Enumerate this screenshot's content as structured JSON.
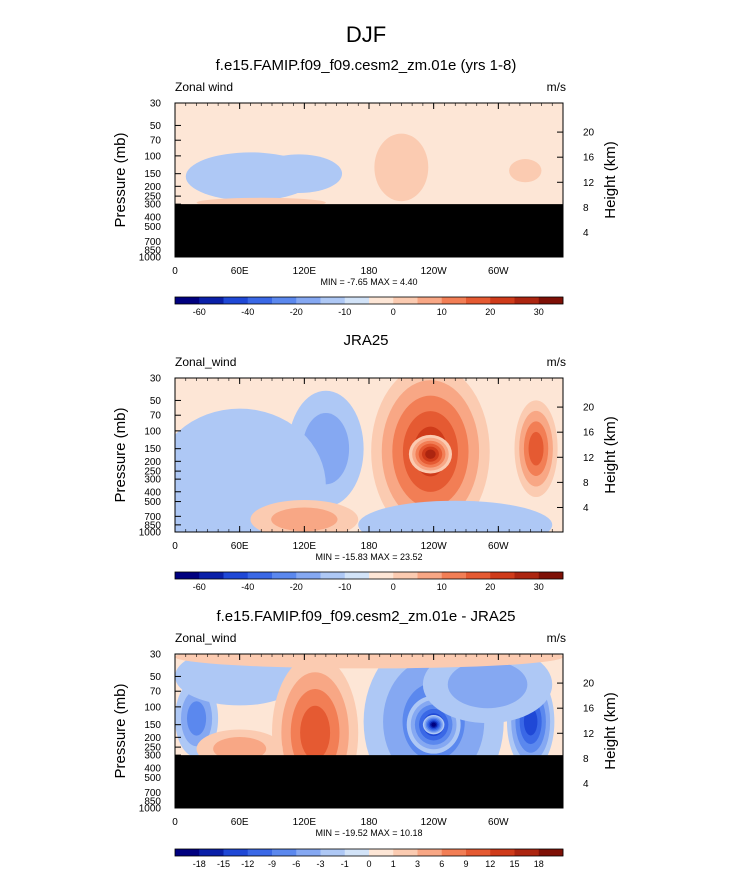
{
  "figure": {
    "title": "DJF"
  },
  "colors": {
    "blues": [
      "#00007f",
      "#0a20a8",
      "#1f48d6",
      "#3a68e6",
      "#5b88ee",
      "#85a8f2",
      "#aec8f5",
      "#d2e3f8"
    ],
    "reds": [
      "#fde6d6",
      "#fbcbb1",
      "#f8a785",
      "#f27e55",
      "#e55a32",
      "#cf3b1a",
      "#ac2510",
      "#7e1006"
    ],
    "mask": "#000000"
  },
  "chart_data": [
    {
      "type": "heatmap",
      "title": "f.e15.FAMIP.f09_f09.cesm2_zm.01e (yrs 1-8)",
      "left_label": "Zonal wind",
      "right_label": "m/s",
      "xlabel": "",
      "ylabel": "Pressure (mb)",
      "ylabel_right": "Height (km)",
      "x_ticks": [
        "0",
        "60E",
        "120E",
        "180",
        "120W",
        "60W"
      ],
      "y_ticks": [
        "30",
        "50",
        "70",
        "100",
        "150",
        "200",
        "250",
        "300",
        "400",
        "500",
        "700",
        "850",
        "1000"
      ],
      "height_ticks": [
        "20",
        "16",
        "12",
        "8",
        "4"
      ],
      "x_range": [
        0,
        360
      ],
      "y_range": [
        1000,
        30
      ],
      "masked_below_mb": 300,
      "features": [
        {
          "kind": "negative",
          "level": 1,
          "lon": 70,
          "p": 160,
          "dlon": 60,
          "dp": 0.25
        },
        {
          "kind": "negative",
          "level": 1,
          "lon": 115,
          "p": 150,
          "dlon": 40,
          "dp": 0.2
        },
        {
          "kind": "positive",
          "level": 1,
          "lon": 210,
          "p": 130,
          "dlon": 25,
          "dp": 0.35
        },
        {
          "kind": "positive",
          "level": 1,
          "lon": 325,
          "p": 140,
          "dlon": 15,
          "dp": 0.12
        },
        {
          "kind": "positive",
          "level": 1,
          "lon": 80,
          "p": 290,
          "dlon": 60,
          "dp": 0.05
        }
      ],
      "min_label": "MIN =  -7.65  MAX =  4.40",
      "colorbar_ticks": [
        "-60",
        "-40",
        "-20",
        "-10",
        "0",
        "10",
        "20",
        "30"
      ]
    },
    {
      "type": "heatmap",
      "title": "JRA25",
      "left_label": "Zonal_wind",
      "right_label": "m/s",
      "xlabel": "",
      "ylabel": "Pressure (mb)",
      "ylabel_right": "Height (km)",
      "x_ticks": [
        "0",
        "60E",
        "120E",
        "180",
        "120W",
        "60W"
      ],
      "y_ticks": [
        "30",
        "50",
        "70",
        "100",
        "150",
        "200",
        "250",
        "300",
        "400",
        "500",
        "700",
        "850",
        "1000"
      ],
      "height_ticks": [
        "20",
        "16",
        "12",
        "8",
        "4"
      ],
      "x_range": [
        0,
        360
      ],
      "y_range": [
        1000,
        30
      ],
      "masked_below_mb": null,
      "features": [
        {
          "kind": "positive",
          "level": 5,
          "lon": 237,
          "p": 160,
          "dlon": 55,
          "dp": 0.9
        },
        {
          "kind": "positive",
          "level": 6,
          "lon": 237,
          "p": 170,
          "dlon": 20,
          "dp": 0.2
        },
        {
          "kind": "positive",
          "level": 4,
          "lon": 335,
          "p": 150,
          "dlon": 20,
          "dp": 0.5
        },
        {
          "kind": "negative",
          "level": 2,
          "lon": 140,
          "p": 150,
          "dlon": 35,
          "dp": 0.6
        },
        {
          "kind": "negative",
          "level": 3,
          "lon": 120,
          "p": 150,
          "dlon": 8,
          "dp": 0.1
        },
        {
          "kind": "negative",
          "level": 1,
          "lon": 60,
          "p": 350,
          "dlon": 80,
          "dp": 0.8
        },
        {
          "kind": "negative",
          "level": 1,
          "lon": 260,
          "p": 850,
          "dlon": 90,
          "dp": 0.25
        },
        {
          "kind": "positive",
          "level": 2,
          "lon": 120,
          "p": 750,
          "dlon": 50,
          "dp": 0.2
        }
      ],
      "min_label": "MIN = -15.83  MAX =  23.52",
      "colorbar_ticks": [
        "-60",
        "-40",
        "-20",
        "-10",
        "0",
        "10",
        "20",
        "30"
      ]
    },
    {
      "type": "heatmap",
      "title": "f.e15.FAMIP.f09_f09.cesm2_zm.01e - JRA25",
      "left_label": "Zonal_wind",
      "right_label": "m/s",
      "xlabel": "",
      "ylabel": "Pressure (mb)",
      "ylabel_right": "Height (km)",
      "x_ticks": [
        "0",
        "60E",
        "120E",
        "180",
        "120W",
        "60W"
      ],
      "y_ticks": [
        "30",
        "50",
        "70",
        "100",
        "150",
        "200",
        "250",
        "300",
        "400",
        "500",
        "700",
        "850",
        "1000"
      ],
      "height_ticks": [
        "20",
        "16",
        "12",
        "8",
        "4"
      ],
      "x_range": [
        0,
        360
      ],
      "y_range": [
        1000,
        30
      ],
      "masked_below_mb": 300,
      "features": [
        {
          "kind": "negative",
          "level": 3,
          "lon": 240,
          "p": 140,
          "dlon": 65,
          "dp": 0.9
        },
        {
          "kind": "negative",
          "level": 6,
          "lon": 240,
          "p": 150,
          "dlon": 25,
          "dp": 0.3
        },
        {
          "kind": "negative",
          "level": 7,
          "lon": 240,
          "p": 150,
          "dlon": 10,
          "dp": 0.1
        },
        {
          "kind": "negative",
          "level": 5,
          "lon": 330,
          "p": 140,
          "dlon": 22,
          "dp": 0.5
        },
        {
          "kind": "negative",
          "level": 2,
          "lon": 290,
          "p": 60,
          "dlon": 60,
          "dp": 0.4
        },
        {
          "kind": "negative",
          "level": 3,
          "lon": 20,
          "p": 130,
          "dlon": 20,
          "dp": 0.4
        },
        {
          "kind": "negative",
          "level": 1,
          "lon": 60,
          "p": 50,
          "dlon": 60,
          "dp": 0.3
        },
        {
          "kind": "positive",
          "level": 4,
          "lon": 130,
          "p": 180,
          "dlon": 40,
          "dp": 0.8
        },
        {
          "kind": "positive",
          "level": 2,
          "lon": 60,
          "p": 260,
          "dlon": 40,
          "dp": 0.2
        },
        {
          "kind": "positive",
          "level": 1,
          "lon": 180,
          "p": 32,
          "dlon": 180,
          "dp": 0.12
        }
      ],
      "min_label": "MIN = -19.52  MAX =  10.18",
      "colorbar_ticks": [
        "-18",
        "-15",
        "-12",
        "-9",
        "-6",
        "-3",
        "-1",
        "0",
        "1",
        "3",
        "6",
        "9",
        "12",
        "15",
        "18"
      ]
    }
  ]
}
